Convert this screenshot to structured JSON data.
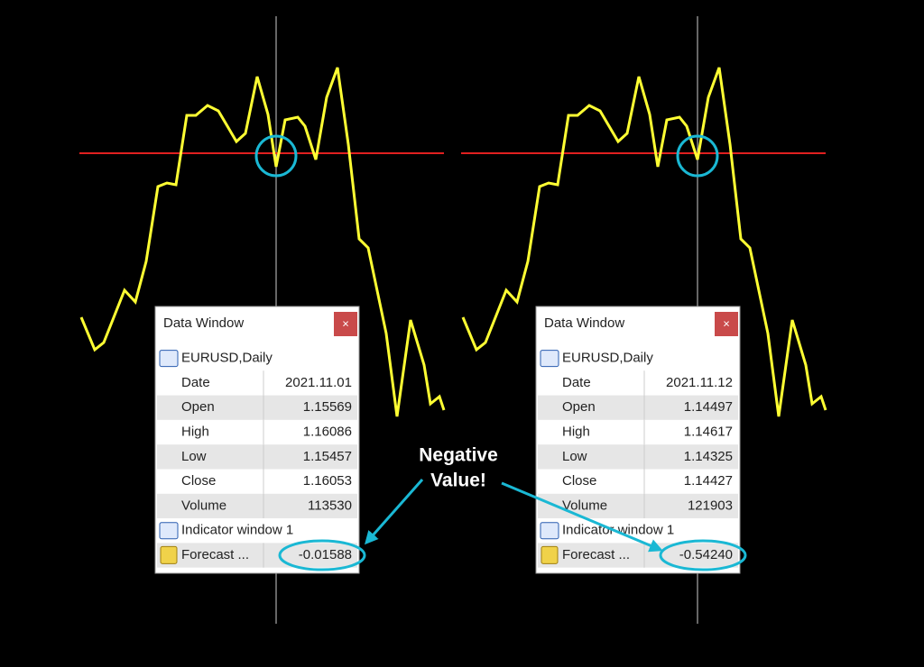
{
  "panels": [
    {
      "title": "Data Window",
      "close": "×",
      "symbol": "EURUSD,Daily",
      "rows": [
        {
          "label": "Date",
          "value": "2021.11.01"
        },
        {
          "label": "Open",
          "value": "1.15569"
        },
        {
          "label": "High",
          "value": "1.16086"
        },
        {
          "label": "Low",
          "value": "1.15457"
        },
        {
          "label": "Close",
          "value": "1.16053"
        },
        {
          "label": "Volume",
          "value": "113530"
        }
      ],
      "indicator": "Indicator window 1",
      "forecast": {
        "label": "Forecast ...",
        "value": "-0.01588"
      }
    },
    {
      "title": "Data Window",
      "close": "×",
      "symbol": "EURUSD,Daily",
      "rows": [
        {
          "label": "Date",
          "value": "2021.11.12"
        },
        {
          "label": "Open",
          "value": "1.14497"
        },
        {
          "label": "High",
          "value": "1.14617"
        },
        {
          "label": "Low",
          "value": "1.14325"
        },
        {
          "label": "Close",
          "value": "1.14427"
        },
        {
          "label": "Volume",
          "value": "121903"
        }
      ],
      "indicator": "Indicator window 1",
      "forecast": {
        "label": "Forecast ...",
        "value": "-0.54240"
      }
    }
  ],
  "annotation": [
    "Negative",
    "Value!"
  ]
}
